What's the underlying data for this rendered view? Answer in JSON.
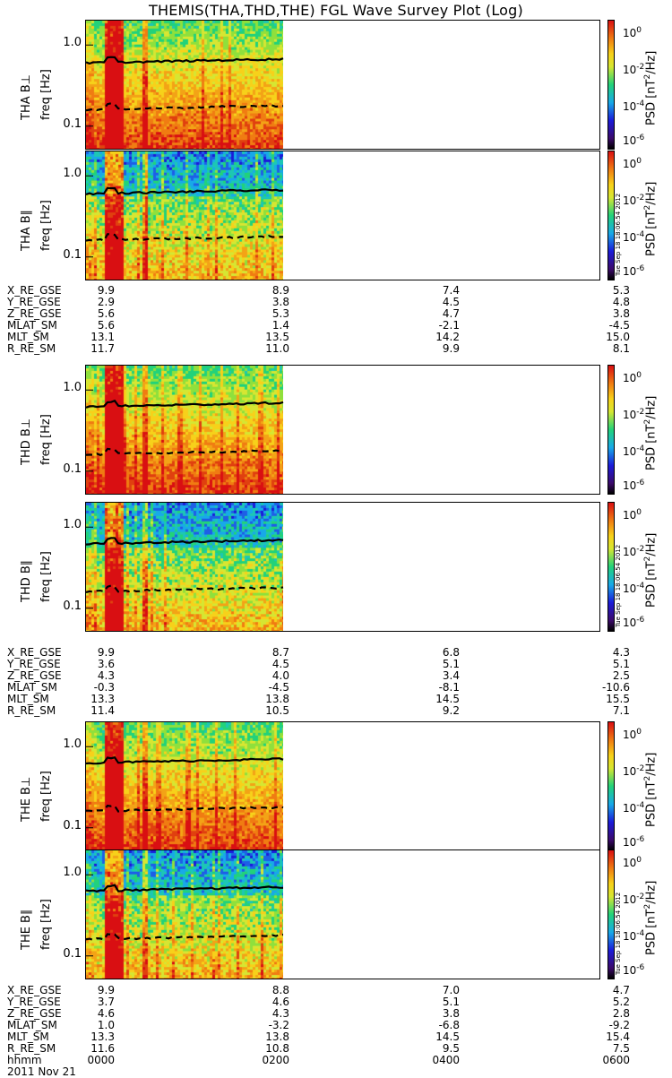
{
  "title": "THEMIS(THA,THD,THE) FGL Wave Survey Plot (Log)",
  "colorbar": {
    "label_main": "PSD [nT",
    "label_sup": "2",
    "label_tail": "/Hz]",
    "ticks": [
      {
        "base": "10",
        "exp": "0"
      },
      {
        "base": "10",
        "exp": "-2"
      },
      {
        "base": "10",
        "exp": "-4"
      },
      {
        "base": "10",
        "exp": "-6"
      }
    ],
    "timestamp": "Tue Sep 18 18:06:54 2012"
  },
  "yaxis": {
    "ticks": [
      "1.0",
      "0.1"
    ],
    "freq_label": "freq [Hz]"
  },
  "panels": [
    {
      "name": "THA B⊥",
      "perp": true
    },
    {
      "name": "THA B∥",
      "perp": false
    },
    {
      "name": "THD B⊥",
      "perp": true
    },
    {
      "name": "THD B∥",
      "perp": false
    },
    {
      "name": "THE B⊥",
      "perp": true
    },
    {
      "name": "THE B∥",
      "perp": false
    }
  ],
  "ephemeris": [
    {
      "rows": [
        {
          "label": "X_RE_GSE",
          "values": [
            "9.9",
            "8.9",
            "7.4",
            "5.3"
          ]
        },
        {
          "label": "Y_RE_GSE",
          "values": [
            "2.9",
            "3.8",
            "4.5",
            "4.8"
          ]
        },
        {
          "label": "Z_RE_GSE",
          "values": [
            "5.6",
            "5.3",
            "4.7",
            "3.8"
          ]
        },
        {
          "label": "MLAT_SM",
          "values": [
            "5.6",
            "1.4",
            "-2.1",
            "-4.5"
          ]
        },
        {
          "label": "MLT_SM",
          "values": [
            "13.1",
            "13.5",
            "14.2",
            "15.0"
          ]
        },
        {
          "label": "R_RE_SM",
          "values": [
            "11.7",
            "11.0",
            "9.9",
            "8.1"
          ]
        }
      ]
    },
    {
      "rows": [
        {
          "label": "X_RE_GSE",
          "values": [
            "9.9",
            "8.7",
            "6.8",
            "4.3"
          ]
        },
        {
          "label": "Y_RE_GSE",
          "values": [
            "3.6",
            "4.5",
            "5.1",
            "5.1"
          ]
        },
        {
          "label": "Z_RE_GSE",
          "values": [
            "4.3",
            "4.0",
            "3.4",
            "2.5"
          ]
        },
        {
          "label": "MLAT_SM",
          "values": [
            "-0.3",
            "-4.5",
            "-8.1",
            "-10.6"
          ]
        },
        {
          "label": "MLT_SM",
          "values": [
            "13.3",
            "13.8",
            "14.5",
            "15.5"
          ]
        },
        {
          "label": "R_RE_SM",
          "values": [
            "11.4",
            "10.5",
            "9.2",
            "7.1"
          ]
        }
      ]
    },
    {
      "rows": [
        {
          "label": "X_RE_GSE",
          "values": [
            "9.9",
            "8.8",
            "7.0",
            "4.7"
          ]
        },
        {
          "label": "Y_RE_GSE",
          "values": [
            "3.7",
            "4.6",
            "5.1",
            "5.2"
          ]
        },
        {
          "label": "Z_RE_GSE",
          "values": [
            "4.6",
            "4.3",
            "3.8",
            "2.8"
          ]
        },
        {
          "label": "MLAT_SM",
          "values": [
            "1.0",
            "-3.2",
            "-6.8",
            "-9.2"
          ]
        },
        {
          "label": "MLT_SM",
          "values": [
            "13.3",
            "13.8",
            "14.5",
            "15.4"
          ]
        },
        {
          "label": "R_RE_SM",
          "values": [
            "11.6",
            "10.8",
            "9.5",
            "7.5"
          ]
        },
        {
          "label": "hhmm",
          "values": [
            "0000",
            "0200",
            "0400",
            "0600"
          ]
        }
      ],
      "date": "2011 Nov 21"
    }
  ],
  "chart_data": {
    "type": "heatmap",
    "title": "THEMIS(THA,THD,THE) FGL Wave Survey Plot (Log)",
    "xlabel": "hhmm",
    "x_ticks": [
      "0000",
      "0200",
      "0400",
      "0600"
    ],
    "ylabel": "freq [Hz]",
    "y_scale": "log",
    "y_ticks": [
      1.0,
      0.1
    ],
    "color_scale": "log",
    "color_ticks": [
      "10^0",
      "10^-2",
      "10^-4",
      "10^-6"
    ],
    "colorbar_label": "PSD [nT^2/Hz]",
    "data_coverage_hhmm": [
      "0000",
      "0230"
    ],
    "series": [
      {
        "name": "THA B⊥",
        "solid_line_hz_approx": 0.6,
        "dashed_line_hz_approx": 0.16
      },
      {
        "name": "THA B∥",
        "solid_line_hz_approx": 0.6,
        "dashed_line_hz_approx": 0.16
      },
      {
        "name": "THD B⊥",
        "solid_line_hz_approx": 0.62,
        "dashed_line_hz_approx": 0.16
      },
      {
        "name": "THD B∥",
        "solid_line_hz_approx": 0.62,
        "dashed_line_hz_approx": 0.16
      },
      {
        "name": "THE B⊥",
        "solid_line_hz_approx": 0.63,
        "dashed_line_hz_approx": 0.16
      },
      {
        "name": "THE B∥",
        "solid_line_hz_approx": 0.63,
        "dashed_line_hz_approx": 0.16
      }
    ]
  }
}
